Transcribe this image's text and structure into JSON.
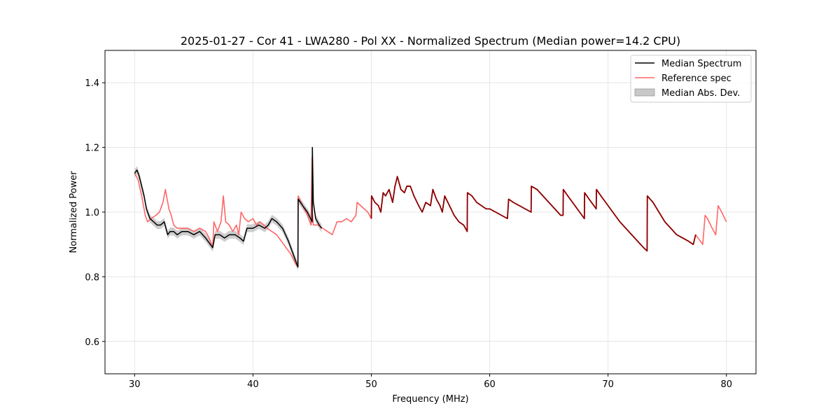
{
  "chart_data": {
    "type": "line",
    "title": "2025-01-27 - Cor 41 - LWA280 - Pol XX - Normalized Spectrum (Median power=14.2 CPU)",
    "xlabel": "Frequency (MHz)",
    "ylabel": "Normalized Power",
    "xlim": [
      27.5,
      82.5
    ],
    "ylim": [
      0.5,
      1.5
    ],
    "xticks": [
      30,
      40,
      50,
      60,
      70,
      80
    ],
    "xtick_labels": [
      "30",
      "40",
      "50",
      "60",
      "70",
      "80"
    ],
    "yticks": [
      0.6,
      0.8,
      1.0,
      1.2,
      1.4
    ],
    "ytick_labels": [
      "0.6",
      "0.8",
      "1.0",
      "1.2",
      "1.4"
    ],
    "grid": true,
    "legend_position": "top-right",
    "colors": {
      "median": "#000000",
      "reference": "#ff6666",
      "mad_fill": "#c8c8c8",
      "overlap": "#8b0000"
    },
    "series": [
      {
        "name": "Median Spectrum",
        "x": [
          30.0,
          30.2,
          30.4,
          30.6,
          30.8,
          31.0,
          31.3,
          31.6,
          31.9,
          32.2,
          32.5,
          32.8,
          33.0,
          33.3,
          33.6,
          34.0,
          34.5,
          35.0,
          35.5,
          36.0,
          36.4,
          36.6,
          36.8,
          37.2,
          37.6,
          38.0,
          38.5,
          38.9,
          39.2,
          39.5,
          40.0,
          40.5,
          41.0,
          41.3,
          41.6,
          42.0,
          42.5,
          43.0,
          43.5,
          43.8,
          43.82,
          44.2,
          44.6,
          45.0,
          45.02,
          45.1,
          45.3,
          45.6,
          45.8
        ],
        "y": [
          1.12,
          1.13,
          1.11,
          1.08,
          1.05,
          1.01,
          0.98,
          0.97,
          0.96,
          0.96,
          0.97,
          0.93,
          0.94,
          0.94,
          0.93,
          0.94,
          0.94,
          0.93,
          0.94,
          0.92,
          0.9,
          0.89,
          0.93,
          0.93,
          0.92,
          0.93,
          0.93,
          0.92,
          0.91,
          0.95,
          0.95,
          0.96,
          0.95,
          0.96,
          0.98,
          0.97,
          0.95,
          0.91,
          0.86,
          0.83,
          1.04,
          1.02,
          1.0,
          0.97,
          1.2,
          1.03,
          0.98,
          0.96,
          0.95
        ]
      },
      {
        "name": "Reference spec",
        "x": [
          30.0,
          30.3,
          30.6,
          30.9,
          31.1,
          31.4,
          31.8,
          32.1,
          32.4,
          32.6,
          32.7,
          32.9,
          33.1,
          33.3,
          33.6,
          34.0,
          34.5,
          35.0,
          35.5,
          36.0,
          36.3,
          36.6,
          36.7,
          37.0,
          37.3,
          37.5,
          37.7,
          38.0,
          38.3,
          38.6,
          38.8,
          39.0,
          39.3,
          39.6,
          40.0,
          40.3,
          40.6,
          40.9,
          41.2,
          41.6,
          42.0,
          42.4,
          42.8,
          43.2,
          43.6,
          43.8,
          43.82,
          44.2,
          44.6,
          44.9,
          45.0,
          45.02,
          45.1,
          45.5,
          45.9,
          46.3,
          46.7,
          47.1,
          47.5,
          47.9,
          48.3,
          48.7,
          48.8,
          49.1,
          49.4,
          49.7,
          50.0,
          50.02,
          50.3,
          50.6,
          50.8,
          51.0,
          51.2,
          51.5,
          51.8,
          52.0,
          52.2,
          52.5,
          52.8,
          53.0,
          53.3,
          53.6,
          54.0,
          54.3,
          54.6,
          55.0,
          55.2,
          55.5,
          55.8,
          56.0,
          56.2,
          56.6,
          57.0,
          57.4,
          57.8,
          58.1,
          58.12,
          58.5,
          58.9,
          59.3,
          59.7,
          60.0,
          60.5,
          61.0,
          61.5,
          61.6,
          62.0,
          62.5,
          63.0,
          63.5,
          63.52,
          64.0,
          64.5,
          65.0,
          65.5,
          66.0,
          66.2,
          66.22,
          66.6,
          67.0,
          67.4,
          67.8,
          68.0,
          68.02,
          68.4,
          68.8,
          69.0,
          69.02,
          69.4,
          69.8,
          70.2,
          70.6,
          71.0,
          71.5,
          72.0,
          72.5,
          73.0,
          73.3,
          73.32,
          73.8,
          74.3,
          74.8,
          75.3,
          75.8,
          76.3,
          76.8,
          77.2,
          77.4,
          77.6,
          77.8,
          78.0,
          78.2,
          78.4,
          78.8,
          79.1,
          79.3,
          79.6,
          80.0
        ],
        "y": [
          1.12,
          1.1,
          1.05,
          0.99,
          0.97,
          0.98,
          0.99,
          1.0,
          1.03,
          1.07,
          1.05,
          1.01,
          0.99,
          0.96,
          0.95,
          0.95,
          0.95,
          0.94,
          0.95,
          0.94,
          0.92,
          0.89,
          0.97,
          0.94,
          0.97,
          1.05,
          0.97,
          0.96,
          0.94,
          0.96,
          0.93,
          1.0,
          0.98,
          0.97,
          0.98,
          0.96,
          0.97,
          0.96,
          0.95,
          0.94,
          0.93,
          0.91,
          0.89,
          0.87,
          0.84,
          0.83,
          1.05,
          1.02,
          0.99,
          0.96,
          1.17,
          1.0,
          0.96,
          0.96,
          0.95,
          0.94,
          0.93,
          0.97,
          0.97,
          0.98,
          0.97,
          0.99,
          1.03,
          1.02,
          1.01,
          1.0,
          0.98,
          1.05,
          1.03,
          1.02,
          1.0,
          1.06,
          1.05,
          1.07,
          1.03,
          1.08,
          1.11,
          1.07,
          1.06,
          1.08,
          1.08,
          1.05,
          1.02,
          1.0,
          1.03,
          1.02,
          1.07,
          1.04,
          1.02,
          1.0,
          1.05,
          1.02,
          0.99,
          0.97,
          0.96,
          0.94,
          1.06,
          1.05,
          1.03,
          1.02,
          1.01,
          1.01,
          1.0,
          0.99,
          0.98,
          1.04,
          1.03,
          1.02,
          1.01,
          1.0,
          1.08,
          1.07,
          1.05,
          1.03,
          1.01,
          0.99,
          0.99,
          1.07,
          1.05,
          1.03,
          1.01,
          0.99,
          0.98,
          1.06,
          1.04,
          1.02,
          1.01,
          1.07,
          1.05,
          1.03,
          1.01,
          0.99,
          0.97,
          0.95,
          0.93,
          0.91,
          0.89,
          0.88,
          1.05,
          1.03,
          1.0,
          0.97,
          0.95,
          0.93,
          0.92,
          0.91,
          0.9,
          0.93,
          0.92,
          0.91,
          0.9,
          0.99,
          0.98,
          0.95,
          0.93,
          1.02,
          1.0,
          0.97
        ]
      },
      {
        "name": "Median Abs. Dev.",
        "spread": 0.012
      }
    ]
  },
  "legend": {
    "items": [
      "Median Spectrum",
      "Reference spec",
      "Median Abs. Dev."
    ]
  }
}
